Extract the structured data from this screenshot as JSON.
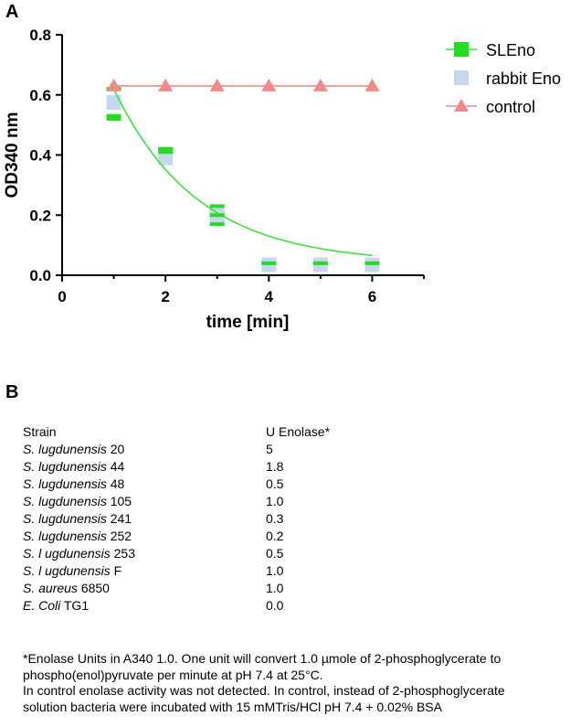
{
  "panel_a_label": "A",
  "panel_b_label": "B",
  "chart_data": {
    "type": "scatter",
    "xlabel": "time [min]",
    "ylabel": "OD340 nm",
    "xlim": [
      0,
      7
    ],
    "ylim": [
      0,
      0.8
    ],
    "xticks": [
      "0",
      "2",
      "4",
      "6"
    ],
    "yticks": [
      "0.0",
      "0.2",
      "0.4",
      "0.6",
      "0.8"
    ],
    "grid": false,
    "legend_position": "top-right",
    "series": [
      {
        "name": "SLEno",
        "marker": "square",
        "color": "#22dd22",
        "x": [
          1,
          2,
          3,
          4,
          5,
          6
        ],
        "y": [
          0.53,
          0.42,
          0.2,
          0.04,
          0.04,
          0.04
        ],
        "y_low": [
          0.52,
          0.41,
          0.17,
          0.04,
          0.04,
          0.04
        ],
        "y_high": [
          0.62,
          0.42,
          0.23,
          0.04,
          0.04,
          0.04
        ],
        "fit_curve": {
          "x": [
            1,
            6
          ],
          "y": [
            0.62,
            0.08
          ]
        }
      },
      {
        "name": "rabbit Eno",
        "marker": "square",
        "color": "#c5d8ee",
        "x": [
          1,
          2,
          3,
          4,
          5,
          6
        ],
        "y": [
          0.575,
          0.39,
          0.2,
          0.035,
          0.035,
          0.035
        ]
      },
      {
        "name": "control",
        "marker": "triangle",
        "color": "#f08a8a",
        "x": [
          1,
          2,
          3,
          4,
          5,
          6
        ],
        "y": [
          0.63,
          0.63,
          0.63,
          0.63,
          0.63,
          0.63
        ],
        "fit_curve": {
          "x": [
            1,
            6
          ],
          "y": [
            0.63,
            0.63
          ]
        }
      }
    ]
  },
  "table": {
    "headers": [
      "Strain",
      "U Enolase*"
    ],
    "rows": [
      {
        "strain_italic": "S. lugdunensis",
        "strain_id": "20",
        "value": "5"
      },
      {
        "strain_italic": "S. lugdunensis",
        "strain_id": "44",
        "value": "1.8"
      },
      {
        "strain_italic": "S. lugdunensis",
        "strain_id": "48",
        "value": "0.5"
      },
      {
        "strain_italic": "S. lugdunensis",
        "strain_id": "105",
        "value": "1.0"
      },
      {
        "strain_italic": "S. lugdunensis",
        "strain_id": "241",
        "value": "0.3"
      },
      {
        "strain_italic": "S. lugdunensis",
        "strain_id": "252",
        "value": "0.2"
      },
      {
        "strain_italic": "S. l ugdunensis",
        "strain_id": "253",
        "value": "0.5"
      },
      {
        "strain_italic": "S. l ugdunensis",
        "strain_id": "F",
        "value": "1.0"
      },
      {
        "strain_italic": "S. aureus",
        "strain_id": "6850",
        "value": "1.0"
      },
      {
        "strain_italic": "E. Coli",
        "strain_id": "TG1",
        "value": "0.0"
      }
    ]
  },
  "footnote": [
    "*Enolase Units in A340 1.0. One unit will convert 1.0 µmole of 2-phosphoglycerate to",
    "phospho(enol)pyruvate per minute at pH 7.4 at 25°C.",
    "In control enolase activity was not detected. In control, instead of 2-phosphoglycerate",
    "solution bacteria were incubated with 15 mMTris/HCl pH 7.4 + 0.02% BSA"
  ]
}
